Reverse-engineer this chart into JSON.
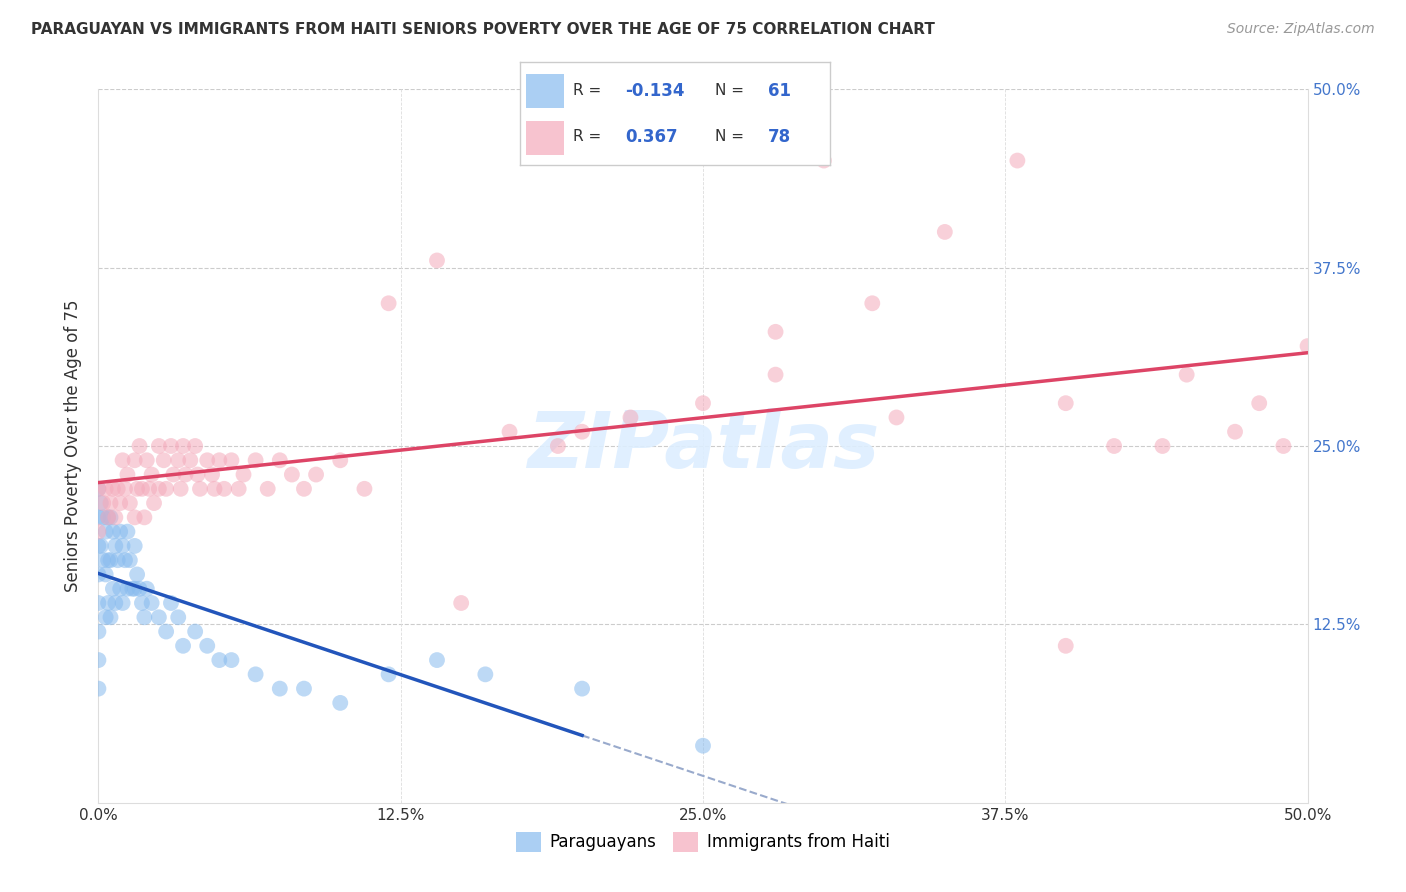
{
  "title": "PARAGUAYAN VS IMMIGRANTS FROM HAITI SENIORS POVERTY OVER THE AGE OF 75 CORRELATION CHART",
  "source": "Source: ZipAtlas.com",
  "ylabel": "Seniors Poverty Over the Age of 75",
  "xlim": [
    0.0,
    0.5
  ],
  "ylim": [
    0.0,
    0.5
  ],
  "tick_vals": [
    0.0,
    0.125,
    0.25,
    0.375,
    0.5
  ],
  "blue_scatter_color": "#88BBEE",
  "pink_scatter_color": "#F4AABB",
  "blue_line_color": "#2255BB",
  "pink_line_color": "#DD4466",
  "right_tick_color": "#4477CC",
  "legend_R_color": "#3366CC",
  "watermark_color": "#DDEEFF",
  "R_blue": -0.134,
  "N_blue": 61,
  "R_pink": 0.367,
  "N_pink": 78,
  "blue_x": [
    0.0,
    0.0,
    0.0,
    0.0,
    0.0,
    0.0,
    0.0,
    0.0,
    0.001,
    0.001,
    0.002,
    0.002,
    0.003,
    0.003,
    0.003,
    0.004,
    0.004,
    0.004,
    0.005,
    0.005,
    0.005,
    0.006,
    0.006,
    0.007,
    0.007,
    0.008,
    0.009,
    0.009,
    0.01,
    0.01,
    0.011,
    0.012,
    0.012,
    0.013,
    0.014,
    0.015,
    0.015,
    0.016,
    0.017,
    0.018,
    0.019,
    0.02,
    0.022,
    0.025,
    0.028,
    0.03,
    0.033,
    0.035,
    0.04,
    0.045,
    0.05,
    0.055,
    0.065,
    0.075,
    0.085,
    0.1,
    0.12,
    0.14,
    0.16,
    0.2,
    0.25
  ],
  "blue_y": [
    0.22,
    0.2,
    0.18,
    0.16,
    0.14,
    0.12,
    0.1,
    0.08,
    0.21,
    0.18,
    0.2,
    0.17,
    0.19,
    0.16,
    0.13,
    0.2,
    0.17,
    0.14,
    0.2,
    0.17,
    0.13,
    0.19,
    0.15,
    0.18,
    0.14,
    0.17,
    0.19,
    0.15,
    0.18,
    0.14,
    0.17,
    0.19,
    0.15,
    0.17,
    0.15,
    0.18,
    0.15,
    0.16,
    0.15,
    0.14,
    0.13,
    0.15,
    0.14,
    0.13,
    0.12,
    0.14,
    0.13,
    0.11,
    0.12,
    0.11,
    0.1,
    0.1,
    0.09,
    0.08,
    0.08,
    0.07,
    0.09,
    0.1,
    0.09,
    0.08,
    0.04
  ],
  "pink_x": [
    0.0,
    0.0,
    0.002,
    0.003,
    0.004,
    0.005,
    0.006,
    0.007,
    0.008,
    0.009,
    0.01,
    0.011,
    0.012,
    0.013,
    0.015,
    0.015,
    0.016,
    0.017,
    0.018,
    0.019,
    0.02,
    0.021,
    0.022,
    0.023,
    0.025,
    0.025,
    0.027,
    0.028,
    0.03,
    0.031,
    0.033,
    0.034,
    0.035,
    0.036,
    0.038,
    0.04,
    0.041,
    0.042,
    0.045,
    0.047,
    0.048,
    0.05,
    0.052,
    0.055,
    0.058,
    0.06,
    0.065,
    0.07,
    0.075,
    0.08,
    0.085,
    0.09,
    0.1,
    0.11,
    0.12,
    0.14,
    0.15,
    0.17,
    0.19,
    0.2,
    0.22,
    0.25,
    0.28,
    0.3,
    0.32,
    0.35,
    0.38,
    0.4,
    0.42,
    0.44,
    0.45,
    0.47,
    0.48,
    0.49,
    0.5,
    0.28,
    0.33,
    0.4
  ],
  "pink_y": [
    0.22,
    0.19,
    0.21,
    0.22,
    0.2,
    0.21,
    0.22,
    0.2,
    0.22,
    0.21,
    0.24,
    0.22,
    0.23,
    0.21,
    0.24,
    0.2,
    0.22,
    0.25,
    0.22,
    0.2,
    0.24,
    0.22,
    0.23,
    0.21,
    0.25,
    0.22,
    0.24,
    0.22,
    0.25,
    0.23,
    0.24,
    0.22,
    0.25,
    0.23,
    0.24,
    0.25,
    0.23,
    0.22,
    0.24,
    0.23,
    0.22,
    0.24,
    0.22,
    0.24,
    0.22,
    0.23,
    0.24,
    0.22,
    0.24,
    0.23,
    0.22,
    0.23,
    0.24,
    0.22,
    0.35,
    0.38,
    0.14,
    0.26,
    0.25,
    0.26,
    0.27,
    0.28,
    0.3,
    0.45,
    0.35,
    0.4,
    0.45,
    0.28,
    0.25,
    0.25,
    0.3,
    0.26,
    0.28,
    0.25,
    0.32,
    0.33,
    0.27,
    0.11
  ]
}
